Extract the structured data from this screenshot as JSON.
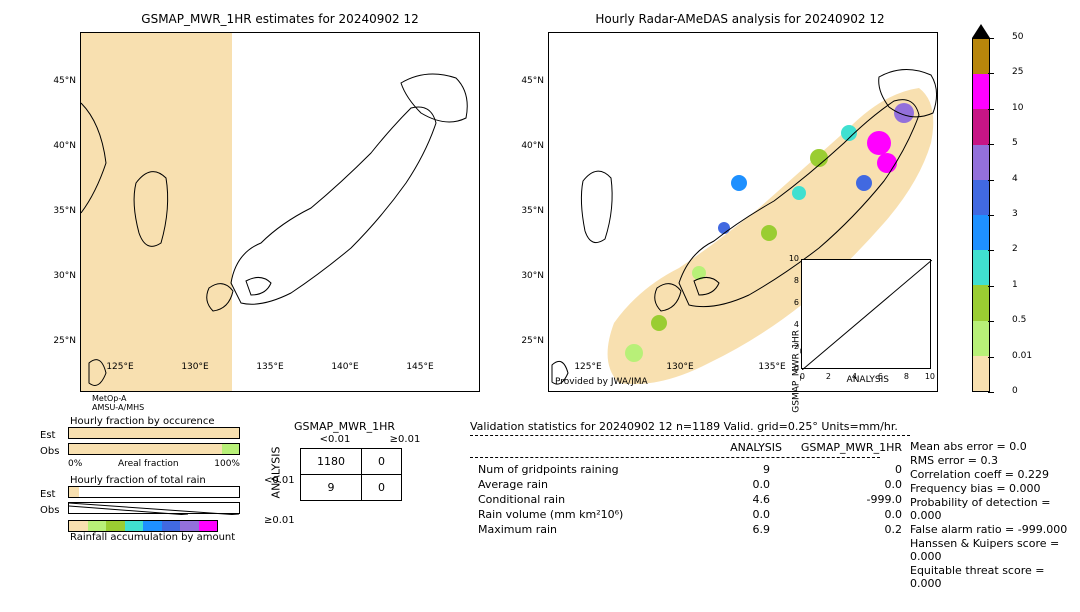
{
  "titles": {
    "left": "GSMAP_MWR_1HR estimates for 20240902 12",
    "right": "Hourly Radar-AMeDAS analysis for 20240902 12"
  },
  "map": {
    "lat_ticks": [
      "45°N",
      "40°N",
      "35°N",
      "30°N",
      "25°N"
    ],
    "lon_ticks_left": [
      "125°E",
      "130°E",
      "135°E",
      "140°E",
      "145°E"
    ],
    "lon_ticks_right": [
      "125°E",
      "130°E",
      "135°E"
    ],
    "sat_label_line1": "MetOp-A",
    "sat_label_line2": "AMSU-A/MHS",
    "provided_by": "Provided by JWA/JMA",
    "swath_right_pct": 38
  },
  "colorbar": {
    "colors": [
      "#b8860b",
      "#ff00ff",
      "#c71585",
      "#9370db",
      "#4169e1",
      "#1e90ff",
      "#40e0d0",
      "#9acd32",
      "#b8f078",
      "#f8e0b0"
    ],
    "ticks": [
      "50",
      "25",
      "10",
      "5",
      "4",
      "3",
      "2",
      "1",
      "0.5",
      "0.01",
      "0"
    ]
  },
  "scatter": {
    "xlabel": "ANALYSIS",
    "ylabel": "GSMAP_MWR_1HR",
    "ticks": [
      "0",
      "2",
      "4",
      "6",
      "8",
      "10"
    ]
  },
  "fraction": {
    "title1": "Hourly fraction by occurence",
    "title2": "Hourly fraction of total rain",
    "title3": "Rainfall accumulation by amount",
    "row_labels": [
      "Est",
      "Obs"
    ],
    "axis_0": "0%",
    "axis_lab": "Areal fraction",
    "axis_100": "100%",
    "obs_tan_pct": 90,
    "obs_grn_pct": 10
  },
  "contingency": {
    "col_header": "GSMAP_MWR_1HR",
    "row_header": "ANALYSIS",
    "col_cats": [
      "<0.01",
      "≥0.01"
    ],
    "row_cats": [
      "<0.01",
      "≥0.01"
    ],
    "cells": [
      [
        "1180",
        "0"
      ],
      [
        "9",
        "0"
      ]
    ]
  },
  "stats": {
    "header": "Validation statistics for 20240902 12  n=1189 Valid. grid=0.25° Units=mm/hr.",
    "col1": "ANALYSIS",
    "col2": "GSMAP_MWR_1HR",
    "rows": [
      {
        "label": "Num of gridpoints raining",
        "a": "9",
        "b": "0"
      },
      {
        "label": "Average rain",
        "a": "0.0",
        "b": "0.0"
      },
      {
        "label": "Conditional rain",
        "a": "4.6",
        "b": "-999.0"
      },
      {
        "label": "Rain volume (mm km²10⁶)",
        "a": "0.0",
        "b": "0.0"
      },
      {
        "label": "Maximum rain",
        "a": "6.9",
        "b": "0.2"
      }
    ],
    "right": [
      "Mean abs error =    0.0",
      "RMS error =    0.3",
      "Correlation coeff =  0.229",
      "Frequency bias =  0.000",
      "Probability of detection =  0.000",
      "False alarm ratio = -999.000",
      "Hanssen & Kuipers score =  0.000",
      "Equitable threat score =  0.000"
    ]
  },
  "rain_palette": [
    "#f8e0b0",
    "#b8f078",
    "#9acd32",
    "#40e0d0",
    "#1e90ff",
    "#4169e1",
    "#9370db",
    "#ff00ff"
  ]
}
